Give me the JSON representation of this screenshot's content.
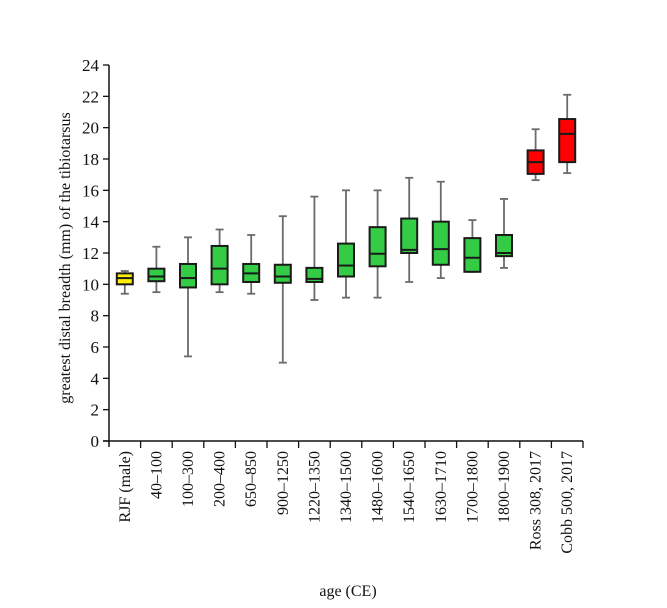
{
  "chart_data": {
    "type": "box",
    "title": "",
    "xlabel": "age (CE)",
    "ylabel": "greatest distal breadth (mm) of the tibiotarsus",
    "ylim": [
      0,
      24
    ],
    "yticks": [
      0,
      2,
      4,
      6,
      8,
      10,
      12,
      14,
      16,
      18,
      20,
      22,
      24
    ],
    "grid": false,
    "legend": "none",
    "colors": {
      "wild": "#ffee00",
      "archaeological": "#33cc44",
      "modern": "#ff0000",
      "whisker": "#6b6b6b",
      "box_edge": "#1a1a1a"
    },
    "categories": [
      "RJF (male)",
      "40–100",
      "100–300",
      "200–400",
      "650–850",
      "900–1250",
      "1220–1350",
      "1340–1500",
      "1480–1600",
      "1540–1650",
      "1630–1710",
      "1700–1800",
      "1800–1900",
      "Ross 308, 2017",
      "Cobb 500, 2017"
    ],
    "boxes": [
      {
        "label": "RJF (male)",
        "group": "wild",
        "whisker_low": 9.4,
        "q1": 10.0,
        "median": 10.4,
        "q3": 10.7,
        "whisker_high": 10.85
      },
      {
        "label": "40–100",
        "group": "archaeological",
        "whisker_low": 9.5,
        "q1": 10.2,
        "median": 10.5,
        "q3": 11.0,
        "whisker_high": 12.4
      },
      {
        "label": "100–300",
        "group": "archaeological",
        "whisker_low": 5.4,
        "q1": 9.8,
        "median": 10.4,
        "q3": 11.3,
        "whisker_high": 13.0
      },
      {
        "label": "200–400",
        "group": "archaeological",
        "whisker_low": 9.5,
        "q1": 10.0,
        "median": 11.0,
        "q3": 12.45,
        "whisker_high": 13.5
      },
      {
        "label": "650–850",
        "group": "archaeological",
        "whisker_low": 9.4,
        "q1": 10.15,
        "median": 10.7,
        "q3": 11.3,
        "whisker_high": 13.15
      },
      {
        "label": "900–1250",
        "group": "archaeological",
        "whisker_low": 5.0,
        "q1": 10.1,
        "median": 10.5,
        "q3": 11.25,
        "whisker_high": 14.35
      },
      {
        "label": "1220–1350",
        "group": "archaeological",
        "whisker_low": 9.0,
        "q1": 10.15,
        "median": 10.35,
        "q3": 11.05,
        "whisker_high": 15.6
      },
      {
        "label": "1340–1500",
        "group": "archaeological",
        "whisker_low": 9.15,
        "q1": 10.5,
        "median": 11.2,
        "q3": 12.6,
        "whisker_high": 16.0
      },
      {
        "label": "1480–1600",
        "group": "archaeological",
        "whisker_low": 9.15,
        "q1": 11.15,
        "median": 11.95,
        "q3": 13.65,
        "whisker_high": 16.0
      },
      {
        "label": "1540–1650",
        "group": "archaeological",
        "whisker_low": 10.15,
        "q1": 12.0,
        "median": 12.2,
        "q3": 14.2,
        "whisker_high": 16.8
      },
      {
        "label": "1630–1710",
        "group": "archaeological",
        "whisker_low": 10.4,
        "q1": 11.25,
        "median": 12.25,
        "q3": 14.0,
        "whisker_high": 16.55
      },
      {
        "label": "1700–1800",
        "group": "archaeological",
        "whisker_low": 10.8,
        "q1": 10.8,
        "median": 11.7,
        "q3": 12.95,
        "whisker_high": 14.1
      },
      {
        "label": "1800–1900",
        "group": "archaeological",
        "whisker_low": 11.05,
        "q1": 11.8,
        "median": 12.0,
        "q3": 13.15,
        "whisker_high": 15.45
      },
      {
        "label": "Ross 308, 2017",
        "group": "modern",
        "whisker_low": 16.65,
        "q1": 17.05,
        "median": 17.8,
        "q3": 18.55,
        "whisker_high": 19.9
      },
      {
        "label": "Cobb 500, 2017",
        "group": "modern",
        "whisker_low": 17.1,
        "q1": 17.8,
        "median": 19.6,
        "q3": 20.55,
        "whisker_high": 22.1
      }
    ]
  }
}
